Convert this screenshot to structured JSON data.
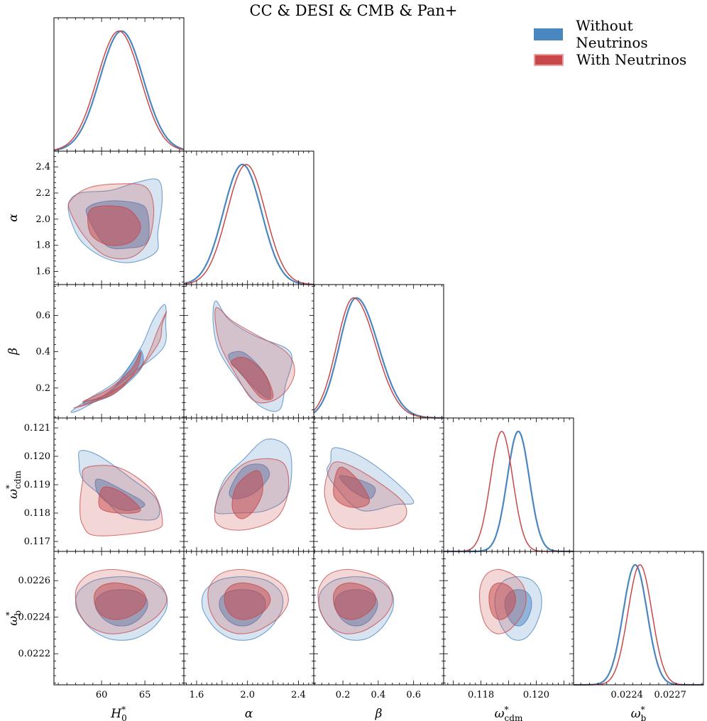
{
  "title": "CC & DESI & CMB & Pan+",
  "colors": {
    "blue": "#4a86c0",
    "red": "#c8484a"
  },
  "legend": [
    {
      "label": "Without Neutrinos",
      "color": "#4a86c0"
    },
    {
      "label": "With Neutrinos",
      "color": "#c8484a"
    }
  ],
  "chart_data": {
    "type": "corner",
    "grid": false,
    "legend_position": "top-right",
    "parameters": [
      {
        "key": "H0",
        "label_base": "H",
        "label_sub": "0",
        "label_sup": "*",
        "range": [
          54.5,
          69.5
        ],
        "ticks": [
          60,
          65
        ],
        "tick_labels": [
          "60",
          "65"
        ]
      },
      {
        "key": "alpha",
        "label_base": "α",
        "label_sub": "",
        "label_sup": "",
        "range": [
          1.5,
          2.52
        ],
        "ticks": [
          1.6,
          1.8,
          2.0,
          2.2,
          2.4
        ],
        "tick_labels_y": [
          "1.6",
          "1.8",
          "2.0",
          "2.2",
          "2.4"
        ],
        "tick_labels_x": [
          "1.6",
          "",
          "2.0",
          "",
          "2.4"
        ]
      },
      {
        "key": "beta",
        "label_base": "β",
        "label_sub": "",
        "label_sup": "",
        "range": [
          0.035,
          0.77
        ],
        "ticks": [
          0.2,
          0.4,
          0.6
        ],
        "tick_labels": [
          "0.2",
          "0.4",
          "0.6"
        ]
      },
      {
        "key": "omega_cdm",
        "label_base": "ω",
        "label_sub": "cdm",
        "label_sup": "*",
        "range": [
          0.11665,
          0.12135
        ],
        "ticks": [
          0.117,
          0.118,
          0.119,
          0.12,
          0.121
        ],
        "tick_labels_y": [
          "0.117",
          "0.118",
          "0.119",
          "0.120",
          "0.121"
        ],
        "tick_labels_x": [
          "",
          "0.118",
          "",
          "0.120",
          ""
        ]
      },
      {
        "key": "omega_b",
        "label_base": "ω",
        "label_sub": "b",
        "label_sup": "*",
        "range": [
          0.02203,
          0.02276
        ],
        "ticks": [
          0.0222,
          0.0224,
          0.0226
        ],
        "tick_labels_y": [
          "0.0222",
          "0.0224",
          "0.0226"
        ],
        "xrange": [
          0.02203,
          0.02293
        ],
        "xticks": [
          0.0224,
          0.0227
        ],
        "tick_labels_x": [
          "0.0224",
          "0.0227"
        ]
      }
    ],
    "series": [
      {
        "name": "Without Neutrinos",
        "color": "#4a86c0",
        "mean": [
          62.3,
          1.96,
          0.275,
          0.11935,
          0.022457
        ],
        "sd": [
          2.5,
          0.15,
          0.1,
          0.0004,
          8.3e-05
        ],
        "contours": {
          "1,0": [
            [
              [
                57.5,
                2.2
              ],
              [
                61,
                2.22
              ],
              [
                64,
                2.28
              ],
              [
                66.5,
                2.3
              ],
              [
                67,
                2.15
              ],
              [
                66.5,
                1.9
              ],
              [
                66.3,
                1.75
              ],
              [
                63.5,
                1.67
              ],
              [
                60.5,
                1.7
              ],
              [
                57.8,
                1.82
              ],
              [
                56.5,
                1.98
              ],
              [
                56.2,
                2.12
              ]
            ],
            [
              [
                58.4,
                2.02
              ],
              [
                60.5,
                1.8
              ],
              [
                63.2,
                1.78
              ],
              [
                65.3,
                1.83
              ],
              [
                65.3,
                2.05
              ],
              [
                64.2,
                2.12
              ],
              [
                61,
                2.14
              ],
              [
                58.6,
                2.1
              ]
            ]
          ],
          "2,0": [
            [
              [
                56.5,
                0.07
              ],
              [
                58.5,
                0.14
              ],
              [
                62,
                0.25
              ],
              [
                64.5,
                0.42
              ],
              [
                66,
                0.58
              ],
              [
                67.3,
                0.66
              ],
              [
                67.4,
                0.56
              ],
              [
                67.1,
                0.42
              ],
              [
                63.5,
                0.28
              ],
              [
                60,
                0.15
              ],
              [
                57.5,
                0.08
              ]
            ],
            [
              [
                58,
                0.12
              ],
              [
                61,
                0.18
              ],
              [
                63.5,
                0.34
              ],
              [
                64.5,
                0.41
              ],
              [
                64.6,
                0.31
              ],
              [
                61.5,
                0.17
              ],
              [
                58.7,
                0.12
              ]
            ]
          ],
          "2,1": [
            [
              [
                1.75,
                0.68
              ],
              [
                1.85,
                0.58
              ],
              [
                2.05,
                0.49
              ],
              [
                2.3,
                0.42
              ],
              [
                2.35,
                0.35
              ],
              [
                2.3,
                0.22
              ],
              [
                2.25,
                0.08
              ],
              [
                2.1,
                0.1
              ],
              [
                1.95,
                0.22
              ],
              [
                1.78,
                0.4
              ],
              [
                1.73,
                0.56
              ]
            ],
            [
              [
                1.85,
                0.38
              ],
              [
                1.92,
                0.3
              ],
              [
                2.1,
                0.17
              ],
              [
                2.18,
                0.15
              ],
              [
                2.15,
                0.26
              ],
              [
                2.05,
                0.35
              ],
              [
                1.95,
                0.4
              ]
            ]
          ],
          "3,0": [
            [
              [
                57.4,
                0.1198
              ],
              [
                57.6,
                0.1202
              ],
              [
                59.8,
                0.12
              ],
              [
                63.5,
                0.1192
              ],
              [
                66.3,
                0.1185
              ],
              [
                66.3,
                0.1178
              ],
              [
                62.5,
                0.1179
              ],
              [
                60,
                0.1186
              ],
              [
                57.8,
                0.1192
              ]
            ],
            [
              [
                59.5,
                0.1192
              ],
              [
                62.5,
                0.1188
              ],
              [
                65,
                0.1183
              ],
              [
                62.5,
                0.1181
              ],
              [
                59.8,
                0.1186
              ]
            ]
          ],
          "3,1": [
            [
              [
                1.75,
                0.1183
              ],
              [
                1.82,
                0.1192
              ],
              [
                1.97,
                0.1199
              ],
              [
                2.15,
                0.1206
              ],
              [
                2.33,
                0.1202
              ],
              [
                2.32,
                0.1187
              ],
              [
                2.15,
                0.1181
              ],
              [
                1.9,
                0.118
              ],
              [
                1.76,
                0.118
              ]
            ],
            [
              [
                1.86,
                0.1188
              ],
              [
                1.97,
                0.1196
              ],
              [
                2.12,
                0.1197
              ],
              [
                2.17,
                0.1193
              ],
              [
                2.05,
                0.1187
              ],
              [
                1.9,
                0.1185
              ]
            ]
          ],
          "3,2": [
            [
              [
                0.13,
                0.1198
              ],
              [
                0.15,
                0.1203
              ],
              [
                0.3,
                0.12
              ],
              [
                0.48,
                0.1192
              ],
              [
                0.6,
                0.1184
              ],
              [
                0.5,
                0.1183
              ],
              [
                0.3,
                0.1181
              ],
              [
                0.15,
                0.119
              ],
              [
                0.11,
                0.1195
              ]
            ],
            [
              [
                0.18,
                0.1193
              ],
              [
                0.28,
                0.1192
              ],
              [
                0.38,
                0.1189
              ],
              [
                0.35,
                0.1185
              ],
              [
                0.25,
                0.1188
              ]
            ]
          ]
        }
      },
      {
        "name": "With Neutrinos",
        "color": "#c8484a",
        "mean": [
          62.0,
          1.99,
          0.26,
          0.11875,
          0.02249
        ],
        "sd": [
          2.5,
          0.15,
          0.1,
          0.0004,
          8.3e-05
        ],
        "contours": {
          "1,0": [
            [
              [
                56.5,
                2.15
              ],
              [
                58.5,
                2.24
              ],
              [
                62,
                2.27
              ],
              [
                65,
                2.25
              ],
              [
                66,
                2.1
              ],
              [
                65.5,
                1.85
              ],
              [
                63.5,
                1.71
              ],
              [
                60.5,
                1.72
              ],
              [
                58,
                1.87
              ],
              [
                56.3,
                2.07
              ]
            ],
            [
              [
                58.5,
                2.05
              ],
              [
                60,
                2.1
              ],
              [
                63,
                2.08
              ],
              [
                64.5,
                1.95
              ],
              [
                63.5,
                1.83
              ],
              [
                61,
                1.8
              ],
              [
                58.8,
                1.88
              ]
            ]
          ],
          "2,0": [
            [
              [
                56.8,
                0.09
              ],
              [
                59,
                0.13
              ],
              [
                62.5,
                0.22
              ],
              [
                65,
                0.35
              ],
              [
                66.5,
                0.52
              ],
              [
                67.5,
                0.62
              ],
              [
                67,
                0.55
              ],
              [
                66.5,
                0.44
              ],
              [
                63.5,
                0.26
              ],
              [
                60,
                0.14
              ]
            ],
            [
              [
                58,
                0.13
              ],
              [
                61,
                0.2
              ],
              [
                63.5,
                0.31
              ],
              [
                64.5,
                0.4
              ],
              [
                64,
                0.3
              ],
              [
                61.5,
                0.17
              ],
              [
                58.5,
                0.13
              ]
            ]
          ],
          "2,1": [
            [
              [
                1.75,
                0.64
              ],
              [
                1.88,
                0.57
              ],
              [
                2.05,
                0.5
              ],
              [
                2.3,
                0.4
              ],
              [
                2.37,
                0.3
              ],
              [
                2.32,
                0.2
              ],
              [
                2.2,
                0.13
              ],
              [
                2.05,
                0.13
              ],
              [
                1.92,
                0.26
              ],
              [
                1.78,
                0.45
              ]
            ],
            [
              [
                1.87,
                0.34
              ],
              [
                1.95,
                0.28
              ],
              [
                2.1,
                0.15
              ],
              [
                2.2,
                0.15
              ],
              [
                2.15,
                0.26
              ],
              [
                2.05,
                0.34
              ],
              [
                1.95,
                0.37
              ]
            ]
          ],
          "3,0": [
            [
              [
                57.5,
                0.1183
              ],
              [
                57.8,
                0.1191
              ],
              [
                58.2,
                0.1196
              ],
              [
                62,
                0.1196
              ],
              [
                65.8,
                0.1188
              ],
              [
                67,
                0.1178
              ],
              [
                66,
                0.1174
              ],
              [
                59.5,
                0.1172
              ],
              [
                57.8,
                0.1176
              ]
            ],
            [
              [
                59.8,
                0.1182
              ],
              [
                60.2,
                0.1189
              ],
              [
                62.5,
                0.1187
              ],
              [
                64.5,
                0.1181
              ],
              [
                62,
                0.118
              ]
            ]
          ],
          "3,1": [
            [
              [
                1.75,
                0.1177
              ],
              [
                1.8,
                0.1189
              ],
              [
                2,
                0.1198
              ],
              [
                2.27,
                0.1198
              ],
              [
                2.32,
                0.1188
              ],
              [
                2.22,
                0.1178
              ],
              [
                1.95,
                0.1174
              ]
            ],
            [
              [
                1.88,
                0.1182
              ],
              [
                1.92,
                0.119
              ],
              [
                2.08,
                0.1195
              ],
              [
                2.12,
                0.1188
              ],
              [
                2.05,
                0.1181
              ],
              [
                1.95,
                0.1178
              ]
            ]
          ],
          "3,2": [
            [
              [
                0.1,
                0.1185
              ],
              [
                0.12,
                0.1195
              ],
              [
                0.18,
                0.1198
              ],
              [
                0.35,
                0.1193
              ],
              [
                0.55,
                0.1183
              ],
              [
                0.5,
                0.1176
              ],
              [
                0.2,
                0.1175
              ]
            ],
            [
              [
                0.15,
                0.1186
              ],
              [
                0.18,
                0.1196
              ],
              [
                0.28,
                0.1192
              ],
              [
                0.35,
                0.1184
              ],
              [
                0.25,
                0.1182
              ]
            ]
          ]
        }
      }
    ]
  },
  "axis_labels": [
    {
      "base": "H",
      "sub": "0",
      "sup": "*"
    },
    {
      "base": "α",
      "sub": "",
      "sup": ""
    },
    {
      "base": "β",
      "sub": "",
      "sup": ""
    },
    {
      "base": "ω",
      "sub": "cdm",
      "sup": "*"
    },
    {
      "base": "ω",
      "sub": "b",
      "sup": "*"
    }
  ]
}
